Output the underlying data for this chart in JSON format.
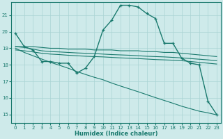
{
  "xlabel": "Humidex (Indice chaleur)",
  "bg_color": "#ceeaea",
  "grid_color": "#aad4d4",
  "line_color": "#1a7a6e",
  "x_ticks": [
    0,
    1,
    2,
    3,
    4,
    5,
    6,
    7,
    8,
    9,
    10,
    11,
    12,
    13,
    14,
    15,
    16,
    17,
    18,
    19,
    20,
    21,
    22,
    23
  ],
  "y_ticks": [
    15,
    16,
    17,
    18,
    19,
    20,
    21
  ],
  "ylim": [
    14.5,
    21.8
  ],
  "xlim": [
    -0.5,
    23.5
  ],
  "series": {
    "humidex": [
      19.9,
      19.1,
      18.9,
      18.2,
      18.2,
      18.1,
      18.1,
      17.5,
      17.8,
      18.5,
      20.1,
      20.7,
      21.6,
      21.6,
      21.5,
      21.1,
      20.8,
      19.3,
      19.3,
      18.4,
      18.1,
      18.0,
      15.8,
      15.0
    ],
    "line1": [
      19.1,
      19.1,
      19.1,
      19.05,
      19.0,
      19.0,
      18.95,
      18.95,
      18.95,
      18.9,
      18.9,
      18.9,
      18.85,
      18.85,
      18.85,
      18.8,
      18.8,
      18.75,
      18.75,
      18.7,
      18.65,
      18.6,
      18.55,
      18.5
    ],
    "line2": [
      19.1,
      19.05,
      18.95,
      18.85,
      18.8,
      18.78,
      18.75,
      18.72,
      18.7,
      18.68,
      18.65,
      18.62,
      18.6,
      18.58,
      18.55,
      18.52,
      18.5,
      18.48,
      18.45,
      18.42,
      18.38,
      18.34,
      18.3,
      18.25
    ],
    "line3": [
      18.9,
      18.85,
      18.78,
      18.7,
      18.65,
      18.62,
      18.58,
      18.55,
      18.52,
      18.5,
      18.48,
      18.45,
      18.42,
      18.4,
      18.38,
      18.35,
      18.32,
      18.3,
      18.28,
      18.25,
      18.2,
      18.15,
      18.1,
      18.05
    ],
    "diag_line": [
      19.0,
      18.75,
      18.55,
      18.35,
      18.15,
      17.98,
      17.8,
      17.6,
      17.42,
      17.25,
      17.1,
      16.9,
      16.72,
      16.55,
      16.38,
      16.2,
      16.02,
      15.85,
      15.68,
      15.5,
      15.35,
      15.2,
      15.1,
      14.98
    ]
  }
}
